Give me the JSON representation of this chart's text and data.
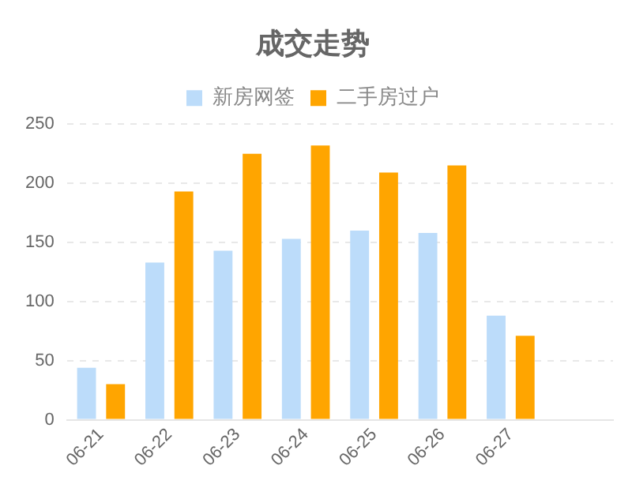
{
  "chart_data": {
    "type": "bar",
    "title": "成交走势",
    "categories": [
      "06-21",
      "06-22",
      "06-23",
      "06-24",
      "06-25",
      "06-26",
      "06-27",
      null
    ],
    "series": [
      {
        "name": "新房网签",
        "color": "#bcdcfa",
        "values": [
          44,
          133,
          143,
          153,
          160,
          158,
          88,
          null
        ]
      },
      {
        "name": "二手房过户",
        "color": "#ffa500",
        "values": [
          30,
          193,
          225,
          232,
          209,
          215,
          71,
          null
        ]
      }
    ],
    "ylim": [
      0,
      250
    ],
    "yticks": [
      0,
      50,
      100,
      150,
      200,
      250
    ],
    "grid": "y",
    "legend": "top"
  }
}
